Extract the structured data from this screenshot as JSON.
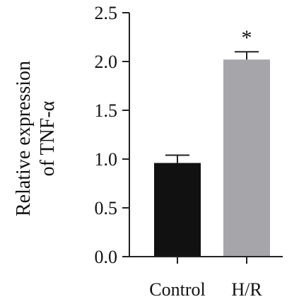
{
  "chart_data": {
    "type": "bar",
    "categories": [
      "Control",
      "H/R"
    ],
    "values": [
      0.96,
      2.02
    ],
    "errors": [
      0.08,
      0.08
    ],
    "significance": [
      "",
      "*"
    ],
    "colors": [
      "#111111",
      "#a5a5aa"
    ],
    "ylabel_lines": [
      "Relative expression",
      "of TNF-α"
    ],
    "ylim": [
      0,
      2.5
    ],
    "yticks": [
      "0.0",
      "0.5",
      "1.0",
      "1.5",
      "2.0",
      "2.5"
    ],
    "grid": false
  }
}
